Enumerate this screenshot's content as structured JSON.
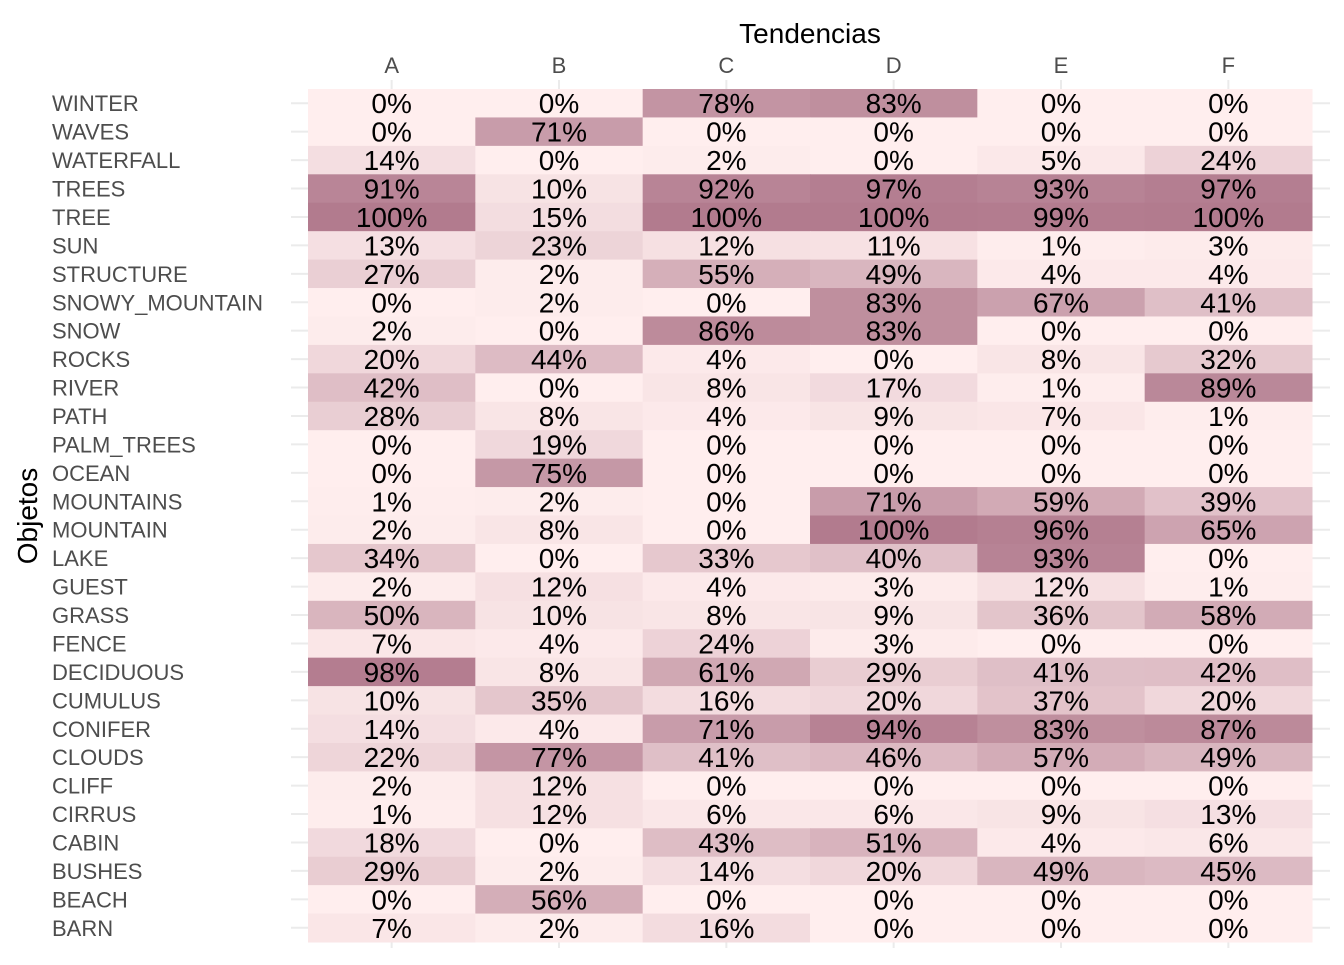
{
  "chart_data": {
    "type": "heatmap",
    "x_title": "Tendencias",
    "y_title": "Objetos",
    "x_position": "top",
    "columns": [
      "A",
      "B",
      "C",
      "D",
      "E",
      "F"
    ],
    "rows": [
      "WINTER",
      "WAVES",
      "WATERFALL",
      "TREES",
      "TREE",
      "SUN",
      "STRUCTURE",
      "SNOWY_MOUNTAIN",
      "SNOW",
      "ROCKS",
      "RIVER",
      "PATH",
      "PALM_TREES",
      "OCEAN",
      "MOUNTAINS",
      "MOUNTAIN",
      "LAKE",
      "GUEST",
      "GRASS",
      "FENCE",
      "DECIDUOUS",
      "CUMULUS",
      "CONIFER",
      "CLOUDS",
      "CLIFF",
      "CIRRUS",
      "CABIN",
      "BUSHES",
      "BEACH",
      "BARN"
    ],
    "values": [
      [
        0,
        0,
        78,
        83,
        0,
        0
      ],
      [
        0,
        71,
        0,
        0,
        0,
        0
      ],
      [
        14,
        0,
        2,
        0,
        5,
        24
      ],
      [
        91,
        10,
        92,
        97,
        93,
        97
      ],
      [
        100,
        15,
        100,
        100,
        99,
        100
      ],
      [
        13,
        23,
        12,
        11,
        1,
        3
      ],
      [
        27,
        2,
        55,
        49,
        4,
        4
      ],
      [
        0,
        2,
        0,
        83,
        67,
        41
      ],
      [
        2,
        0,
        86,
        83,
        0,
        0
      ],
      [
        20,
        44,
        4,
        0,
        8,
        32
      ],
      [
        42,
        0,
        8,
        17,
        1,
        89
      ],
      [
        28,
        8,
        4,
        9,
        7,
        1
      ],
      [
        0,
        19,
        0,
        0,
        0,
        0
      ],
      [
        0,
        75,
        0,
        0,
        0,
        0
      ],
      [
        1,
        2,
        0,
        71,
        59,
        39
      ],
      [
        2,
        8,
        0,
        100,
        96,
        65
      ],
      [
        34,
        0,
        33,
        40,
        93,
        0
      ],
      [
        2,
        12,
        4,
        3,
        12,
        1
      ],
      [
        50,
        10,
        8,
        9,
        36,
        58
      ],
      [
        7,
        4,
        24,
        3,
        0,
        0
      ],
      [
        98,
        8,
        61,
        29,
        41,
        42
      ],
      [
        10,
        35,
        16,
        20,
        37,
        20
      ],
      [
        14,
        4,
        71,
        94,
        83,
        87
      ],
      [
        22,
        77,
        41,
        46,
        57,
        49
      ],
      [
        2,
        12,
        0,
        0,
        0,
        0
      ],
      [
        1,
        12,
        6,
        6,
        9,
        13
      ],
      [
        18,
        0,
        43,
        51,
        4,
        6
      ],
      [
        29,
        2,
        14,
        20,
        49,
        45
      ],
      [
        0,
        56,
        0,
        0,
        0,
        0
      ],
      [
        7,
        2,
        16,
        0,
        0,
        0
      ]
    ],
    "value_suffix": "%",
    "value_range": [
      0,
      100
    ],
    "colors": {
      "low": "#ffeeee",
      "high": "#b27b8e",
      "grid": "#ebebeb",
      "text": "#000000",
      "axis_text": "#4d4d4d"
    },
    "grid": true,
    "legend": "none"
  }
}
